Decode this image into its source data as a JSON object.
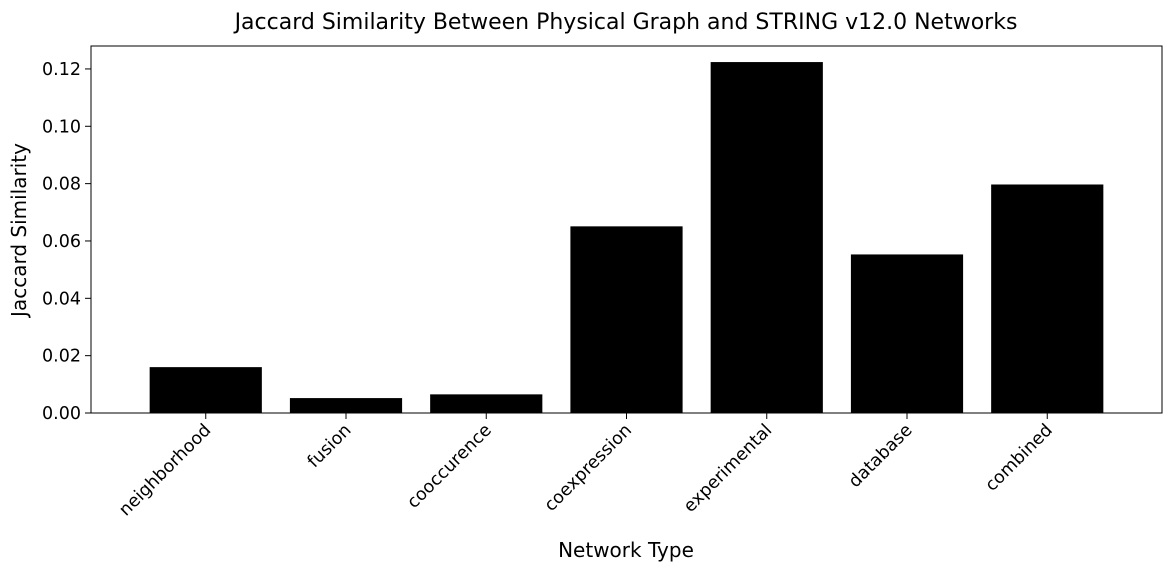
{
  "chart_data": {
    "type": "bar",
    "title": "Jaccard Similarity Between Physical Graph and STRING v12.0 Networks",
    "xlabel": "Network Type",
    "ylabel": "Jaccard Similarity",
    "categories": [
      "neighborhood",
      "fusion",
      "cooccurence",
      "coexpression",
      "experimental",
      "database",
      "combined"
    ],
    "values": [
      0.016,
      0.0052,
      0.0065,
      0.0651,
      0.1224,
      0.0553,
      0.0797
    ],
    "ylim": [
      0,
      0.128
    ],
    "yticks": [
      "0.00",
      "0.02",
      "0.04",
      "0.06",
      "0.08",
      "0.10",
      "0.12"
    ],
    "bar_color": "#000000",
    "grid": false,
    "legend": null,
    "xtick_rotation": "45deg"
  }
}
